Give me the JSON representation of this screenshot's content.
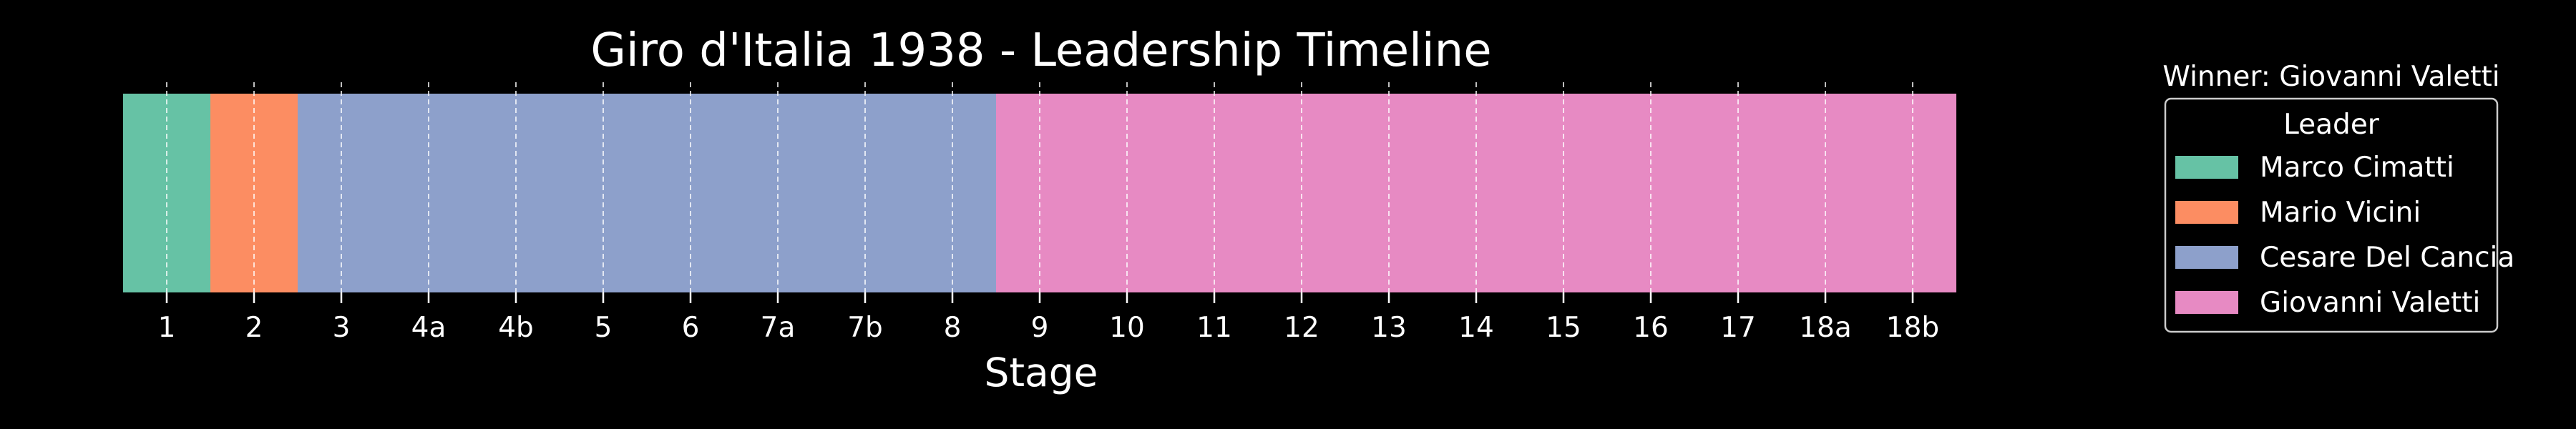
{
  "chart_data": {
    "type": "bar",
    "orientation": "horizontal-timeline",
    "title": "Giro d'Italia 1938 - Leadership Timeline",
    "xlabel": "Stage",
    "ylabel": "",
    "grid": true,
    "stages": [
      "1",
      "2",
      "3",
      "4a",
      "4b",
      "5",
      "6",
      "7a",
      "7b",
      "8",
      "9",
      "10",
      "11",
      "12",
      "13",
      "14",
      "15",
      "16",
      "17",
      "18a",
      "18b"
    ],
    "leaders_by_stage": [
      "Marco Cimatti",
      "Mario Vicini",
      "Cesare Del Cancia",
      "Cesare Del Cancia",
      "Cesare Del Cancia",
      "Cesare Del Cancia",
      "Cesare Del Cancia",
      "Cesare Del Cancia",
      "Cesare Del Cancia",
      "Cesare Del Cancia",
      "Giovanni Valetti",
      "Giovanni Valetti",
      "Giovanni Valetti",
      "Giovanni Valetti",
      "Giovanni Valetti",
      "Giovanni Valetti",
      "Giovanni Valetti",
      "Giovanni Valetti",
      "Giovanni Valetti",
      "Giovanni Valetti",
      "Giovanni Valetti"
    ],
    "legend": {
      "title": "Leader",
      "position": "right",
      "entries": [
        {
          "name": "Marco Cimatti",
          "color": "#66c2a5"
        },
        {
          "name": "Mario Vicini",
          "color": "#fc8d62"
        },
        {
          "name": "Cesare Del Cancia",
          "color": "#8da0cb"
        },
        {
          "name": "Giovanni Valetti",
          "color": "#e78ac3"
        }
      ]
    },
    "annotation": "Winner: Giovanni Valetti"
  }
}
